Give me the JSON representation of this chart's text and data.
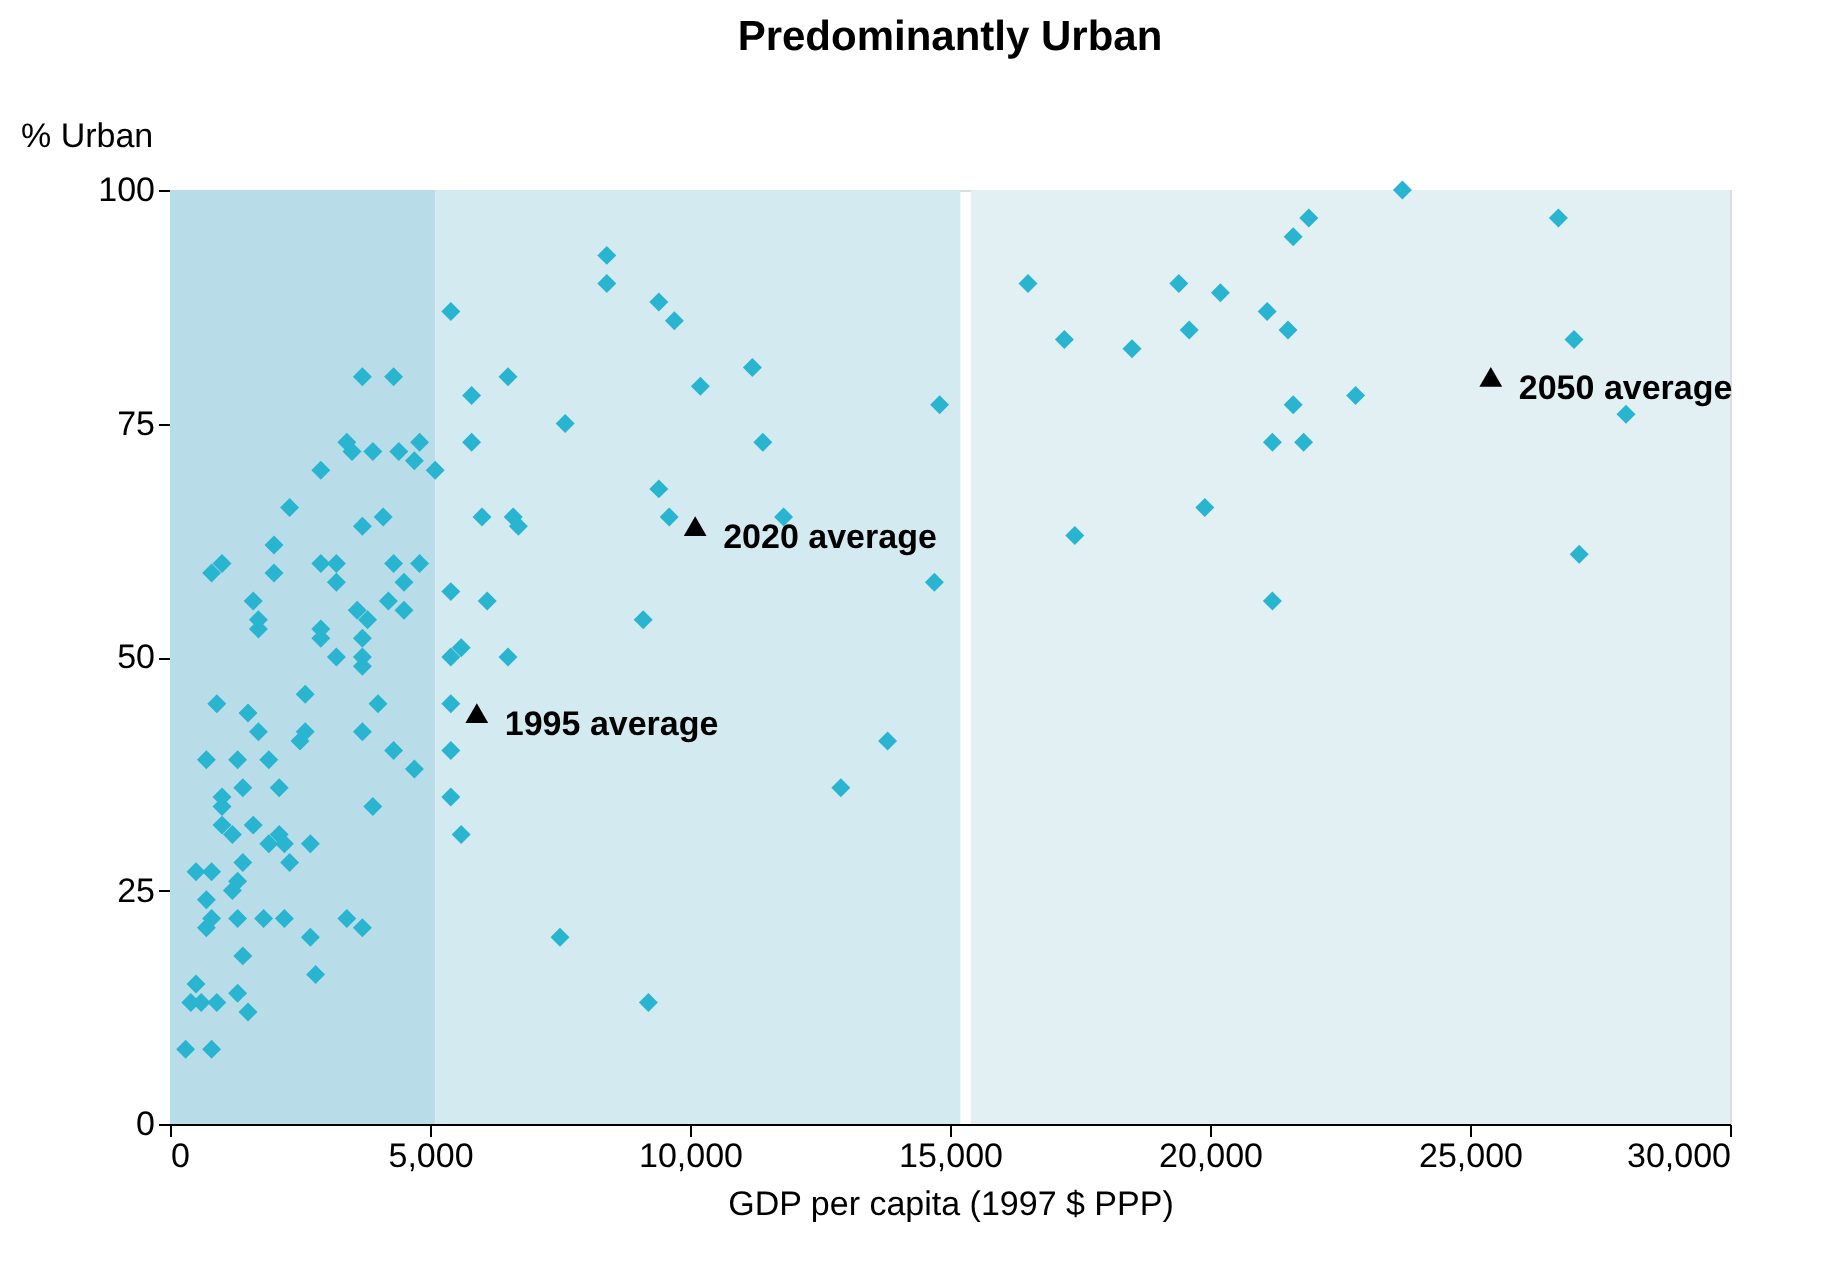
{
  "chart_data": {
    "type": "scatter",
    "title": "Predominantly Urban",
    "xlabel": "GDP per capita (1997 $ PPP)",
    "ylabel": "% Urban",
    "xlim": [
      0,
      30000
    ],
    "xticks": [
      {
        "value": 0,
        "label": "0"
      },
      {
        "value": 5000,
        "label": "5,000"
      },
      {
        "value": 10000,
        "label": "10,000"
      },
      {
        "value": 15000,
        "label": "15,000"
      },
      {
        "value": 20000,
        "label": "20,000"
      },
      {
        "value": 25000,
        "label": "25,000"
      },
      {
        "value": 30000,
        "label": "30,000"
      }
    ],
    "ylim": [
      0,
      100
    ],
    "yticks": [
      0,
      25,
      50,
      75,
      100
    ],
    "grid": false,
    "bands": [
      {
        "axis": "x",
        "from": 0,
        "to": 5100,
        "color": "#b8dde8"
      },
      {
        "axis": "x",
        "from": 5100,
        "to": 15200,
        "color": "#d4eaf1"
      },
      {
        "axis": "x",
        "from": 15400,
        "to": 30000,
        "color": "#e2f0f4"
      }
    ],
    "series": [
      {
        "color": "#29b4d0",
        "marker": "diamond",
        "x": [
          1700,
          2900,
          3700,
          3200,
          3700,
          3700,
          900,
          1500,
          2600,
          4000,
          1700,
          2600,
          2500,
          3700,
          4300,
          4700,
          700,
          1300,
          1900,
          1400,
          2100,
          1000,
          1000,
          3900,
          1000,
          1200,
          1600,
          2100,
          1900,
          2200,
          2700,
          2300,
          1400,
          500,
          800,
          1300,
          1200,
          700,
          800,
          1300,
          700,
          1800,
          2200,
          3400,
          3700,
          2700,
          1400,
          2800,
          500,
          600,
          900,
          400,
          1300,
          1500,
          300,
          800,
          5400,
          5400,
          5400,
          5400,
          5600,
          5400,
          3700,
          4300,
          5800,
          3400,
          3500,
          3900,
          4400,
          4800,
          4700,
          5100,
          5800,
          2900,
          2300,
          3700,
          4100,
          6000,
          2000,
          2000,
          800,
          1000,
          2900,
          3200,
          3200,
          4300,
          4800,
          4500,
          1600,
          1700,
          2900,
          3600,
          3800,
          4200,
          4500,
          5400,
          6100,
          5600,
          8400,
          8400,
          9400,
          9700,
          11200,
          10200,
          6500,
          7600,
          14800,
          11400,
          9400,
          9600,
          11800,
          6600,
          6700,
          14700,
          9100,
          6500,
          13800,
          12900,
          7500,
          9200,
          23700,
          26700,
          21900,
          21600,
          16500,
          19400,
          20200,
          21100,
          21500,
          19600,
          17200,
          18500,
          27000,
          21600,
          22800,
          28000,
          21200,
          21800,
          19900,
          17400,
          27100,
          21200
        ],
        "values": [
          53,
          52,
          52,
          50,
          50,
          49,
          45,
          44,
          46,
          45,
          42,
          42,
          41,
          42,
          40,
          38,
          39,
          39,
          39,
          36,
          36,
          35,
          34,
          34,
          32,
          31,
          32,
          31,
          30,
          30,
          30,
          28,
          28,
          27,
          27,
          26,
          25,
          24,
          22,
          22,
          21,
          22,
          22,
          22,
          21,
          20,
          18,
          16,
          15,
          13,
          13,
          13,
          14,
          12,
          8,
          8,
          50,
          45,
          40,
          35,
          31,
          87,
          80,
          80,
          78,
          73,
          72,
          72,
          72,
          73,
          71,
          70,
          73,
          70,
          66,
          64,
          65,
          65,
          62,
          59,
          59,
          60,
          60,
          60,
          58,
          60,
          60,
          58,
          56,
          54,
          53,
          55,
          54,
          56,
          55,
          57,
          56,
          51,
          93,
          90,
          88,
          86,
          81,
          79,
          80,
          75,
          77,
          73,
          68,
          65,
          65,
          65,
          64,
          58,
          54,
          50,
          41,
          36,
          20,
          13,
          100,
          97,
          97,
          95,
          90,
          90,
          89,
          87,
          85,
          85,
          84,
          83,
          84,
          77,
          78,
          76,
          73,
          73,
          66,
          63,
          61,
          56
        ]
      },
      {
        "color": "#000000",
        "marker": "triangle",
        "x": [
          5900,
          10100,
          25400
        ],
        "values": [
          44,
          64,
          80
        ]
      }
    ],
    "annotations": [
      {
        "text": "1995 average",
        "x": 5900,
        "y": 44
      },
      {
        "text": "2020 average",
        "x": 10100,
        "y": 64
      },
      {
        "text": "2050 average",
        "x": 25400,
        "y": 80
      }
    ]
  }
}
